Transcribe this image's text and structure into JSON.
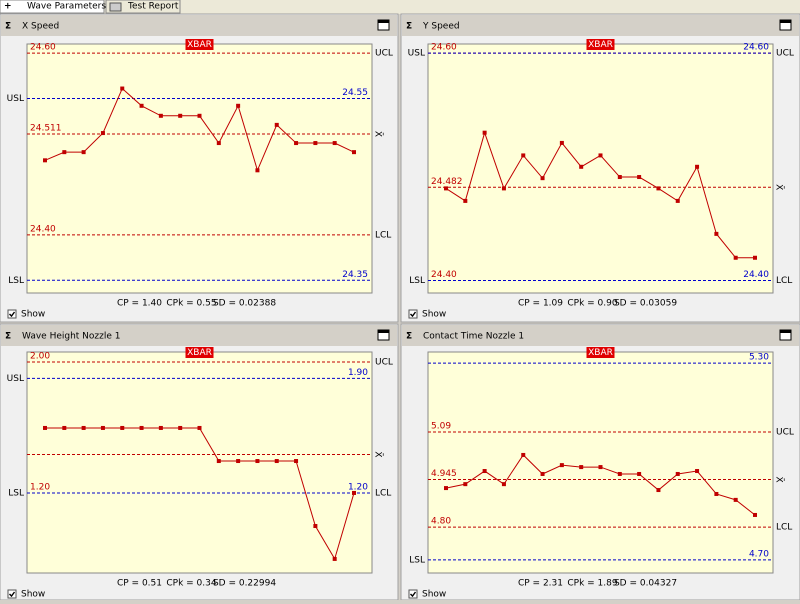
{
  "tabs": [
    "Wave Parameters",
    "Test Report"
  ],
  "chart_data": [
    {
      "type": "line",
      "title": "X Speed",
      "badge": "XBAR",
      "color": "#c00000",
      "ylim": [
        24.336,
        24.61
      ],
      "values": [
        24.482,
        24.491,
        24.491,
        24.512,
        24.561,
        24.542,
        24.531,
        24.531,
        24.531,
        24.501,
        24.542,
        24.471,
        24.521,
        24.501,
        24.501,
        24.501,
        24.491
      ],
      "limits": [
        {
          "value": 24.6,
          "label": "24.60",
          "tag": "UCL",
          "kind": "control"
        },
        {
          "value": 24.55,
          "label": "24.55",
          "tag": "USL",
          "kind": "spec"
        },
        {
          "value": 24.511,
          "label": "24.511",
          "tag": "X̄",
          "kind": "control"
        },
        {
          "value": 24.4,
          "label": "24.40",
          "tag": "LCL",
          "kind": "control"
        },
        {
          "value": 24.35,
          "label": "24.35",
          "tag": "LSL",
          "kind": "spec"
        }
      ],
      "stats": [
        "CP = 1.40",
        "CPk = 0.55",
        "SD = 0.02388"
      ],
      "show": "Show"
    },
    {
      "type": "line",
      "title": "Y Speed",
      "badge": "XBAR",
      "color": "#c00000",
      "ylim": [
        24.389,
        24.608
      ],
      "values": [
        24.481,
        24.47,
        24.53,
        24.481,
        24.51,
        24.49,
        24.521,
        24.5,
        24.51,
        24.491,
        24.491,
        24.481,
        24.47,
        24.5,
        24.441,
        24.42,
        24.42
      ],
      "limits": [
        {
          "value": 24.6,
          "label": "24.60",
          "tag": "UCL",
          "kind": "control"
        },
        {
          "value": 24.6,
          "label": "24.60",
          "tag": "USL",
          "kind": "spec"
        },
        {
          "value": 24.482,
          "label": "24.482",
          "tag": "X̄",
          "kind": "control"
        },
        {
          "value": 24.4,
          "label": "24.40",
          "tag": "LCL",
          "kind": "control"
        },
        {
          "value": 24.4,
          "label": "24.40",
          "tag": "LSL",
          "kind": "spec"
        }
      ],
      "stats": [
        "CP = 1.09",
        "CPk = 0.90",
        "SD = 0.03059"
      ],
      "show": "Show"
    },
    {
      "type": "line",
      "title": "Wave Height Nozzle 1",
      "badge": "XBAR",
      "color": "#c00000",
      "ylim": [
        0.711,
        2.061
      ],
      "values": [
        1.597,
        1.597,
        1.597,
        1.597,
        1.597,
        1.597,
        1.597,
        1.597,
        1.597,
        1.395,
        1.395,
        1.395,
        1.395,
        1.395,
        0.998,
        0.797,
        1.2
      ],
      "limits": [
        {
          "value": 2,
          "label": "2.00",
          "tag": "UCL",
          "kind": "control"
        },
        {
          "value": 1.9,
          "label": "1.90",
          "tag": "USL",
          "kind": "spec"
        },
        {
          "value": 1.435,
          "tag": "X̄",
          "kind": "control"
        },
        {
          "value": 1.2,
          "label": "1.20",
          "tag": "LCL",
          "kind": "control"
        },
        {
          "value": 1.2,
          "label": "1.20",
          "tag": "LSL",
          "kind": "spec"
        }
      ],
      "stats": [
        "CP = 0.51",
        "CPk = 0.34",
        "SD = 0.22994"
      ],
      "show": "Show"
    },
    {
      "type": "line",
      "title": "Contact Time Nozzle 1",
      "badge": "XBAR",
      "color": "#c00000",
      "ylim": [
        4.66,
        5.334
      ],
      "values": [
        4.919,
        4.931,
        4.971,
        4.931,
        5.02,
        4.962,
        4.989,
        4.983,
        4.983,
        4.962,
        4.962,
        4.913,
        4.962,
        4.971,
        4.901,
        4.883,
        4.837
      ],
      "limits": [
        {
          "value": 5.3,
          "label": "5.30",
          "kind": "spec"
        },
        {
          "value": 5.09,
          "label": "5.09",
          "tag": "UCL",
          "kind": "control"
        },
        {
          "value": 4.945,
          "label": "4.945",
          "tag": "X̄",
          "kind": "control"
        },
        {
          "value": 4.8,
          "label": "4.80",
          "tag": "LCL",
          "kind": "control"
        },
        {
          "value": 4.7,
          "label": "4.70",
          "tag": "LSL",
          "kind": "spec"
        }
      ],
      "stats": [
        "CP = 2.31",
        "CPk = 1.89",
        "SD = 0.04327"
      ],
      "show": "Show"
    }
  ]
}
